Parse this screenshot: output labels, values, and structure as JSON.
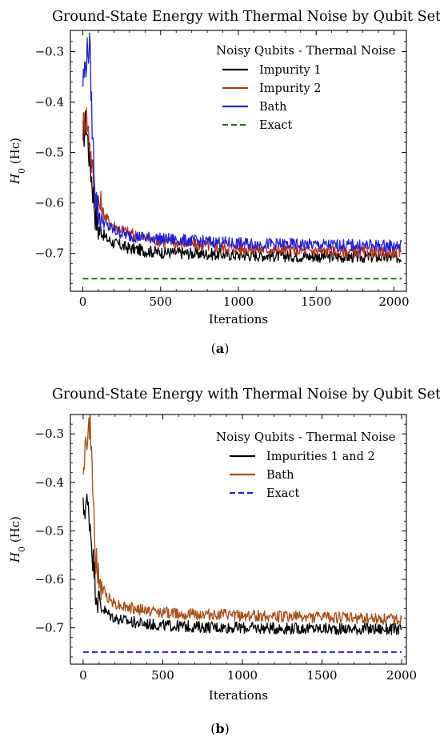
{
  "chart_data": [
    {
      "type": "line",
      "title": "Ground-State Energy with Thermal Noise by Qubit Set",
      "xlabel": "Iterations",
      "ylabel": "H0 (Hc)",
      "ylabel_main": "H",
      "ylabel_sub": "0",
      "ylabel_unit": " (Hc)",
      "xlim": [
        -80,
        2080
      ],
      "ylim": [
        -0.775,
        -0.258
      ],
      "xticks": [
        0,
        500,
        1000,
        1500,
        2000
      ],
      "xtick_labels": [
        "0",
        "500",
        "1000",
        "1500",
        "2000"
      ],
      "yticks": [
        -0.7,
        -0.6,
        -0.5,
        -0.4,
        -0.3
      ],
      "ytick_labels": [
        "−0.7",
        "−0.6",
        "−0.5",
        "−0.4",
        "−0.3"
      ],
      "legend_title": "Noisy Qubits - Thermal Noise",
      "legend_position": "top-right",
      "caption_letter": "a",
      "series": [
        {
          "name": "Impurity 1",
          "color": "#000000",
          "dashed": false,
          "x": [
            0,
            20,
            40,
            60,
            80,
            100,
            150,
            200,
            300,
            400,
            500,
            700,
            1000,
            1500,
            2050
          ],
          "y": [
            -0.47,
            -0.44,
            -0.5,
            -0.56,
            -0.62,
            -0.65,
            -0.67,
            -0.68,
            -0.69,
            -0.695,
            -0.698,
            -0.7,
            -0.703,
            -0.706,
            -0.708
          ]
        },
        {
          "name": "Impurity 2",
          "color": "#b5361a",
          "dashed": false,
          "x": [
            0,
            20,
            40,
            60,
            80,
            100,
            150,
            200,
            300,
            400,
            500,
            700,
            1000,
            1500,
            2050
          ],
          "y": [
            -0.45,
            -0.42,
            -0.47,
            -0.53,
            -0.58,
            -0.6,
            -0.63,
            -0.645,
            -0.66,
            -0.67,
            -0.675,
            -0.682,
            -0.69,
            -0.695,
            -0.698
          ]
        },
        {
          "name": "Bath",
          "color": "#1f1fe0",
          "dashed": false,
          "x": [
            0,
            15,
            30,
            45,
            60,
            80,
            100,
            150,
            200,
            300,
            400,
            500,
            700,
            1000,
            1500,
            2050
          ],
          "y": [
            -0.36,
            -0.33,
            -0.3,
            -0.29,
            -0.45,
            -0.58,
            -0.62,
            -0.645,
            -0.655,
            -0.665,
            -0.668,
            -0.671,
            -0.675,
            -0.68,
            -0.683,
            -0.685
          ]
        },
        {
          "name": "Exact",
          "color": "#2e6e1e",
          "dashed": true,
          "x": [
            0,
            2050
          ],
          "y": [
            -0.75,
            -0.75
          ]
        }
      ]
    },
    {
      "type": "line",
      "title": "Ground-State Energy with Thermal Noise by Qubit Set",
      "xlabel": "Iterations",
      "ylabel": "H0 (Hc)",
      "ylabel_main": "H",
      "ylabel_sub": "0",
      "ylabel_unit": " (Hc)",
      "xlim": [
        -80,
        2030
      ],
      "ylim": [
        -0.775,
        -0.26
      ],
      "xticks": [
        0,
        500,
        1000,
        1500,
        2000
      ],
      "xtick_labels": [
        "0",
        "500",
        "1000",
        "1500",
        "2000"
      ],
      "yticks": [
        -0.7,
        -0.6,
        -0.5,
        -0.4,
        -0.3
      ],
      "ytick_labels": [
        "−0.7",
        "−0.6",
        "−0.5",
        "−0.4",
        "−0.3"
      ],
      "legend_title": "Noisy Qubits - Thermal Noise",
      "legend_position": "top-right",
      "caption_letter": "b",
      "series": [
        {
          "name": "Impurities 1 and 2",
          "color": "#000000",
          "dashed": false,
          "x": [
            0,
            20,
            40,
            60,
            80,
            100,
            150,
            200,
            300,
            400,
            500,
            700,
            1000,
            1500,
            2000
          ],
          "y": [
            -0.46,
            -0.44,
            -0.47,
            -0.55,
            -0.62,
            -0.65,
            -0.67,
            -0.68,
            -0.688,
            -0.692,
            -0.695,
            -0.698,
            -0.7,
            -0.702,
            -0.703
          ]
        },
        {
          "name": "Bath",
          "color": "#a84e14",
          "dashed": false,
          "x": [
            0,
            15,
            30,
            45,
            60,
            80,
            100,
            150,
            200,
            300,
            400,
            500,
            700,
            1000,
            1500,
            2000
          ],
          "y": [
            -0.36,
            -0.33,
            -0.3,
            -0.28,
            -0.42,
            -0.56,
            -0.61,
            -0.635,
            -0.65,
            -0.66,
            -0.665,
            -0.668,
            -0.672,
            -0.675,
            -0.678,
            -0.682
          ]
        },
        {
          "name": "Exact",
          "color": "#1f1fe0",
          "dashed": true,
          "x": [
            0,
            2000
          ],
          "y": [
            -0.75,
            -0.75
          ]
        }
      ]
    }
  ]
}
